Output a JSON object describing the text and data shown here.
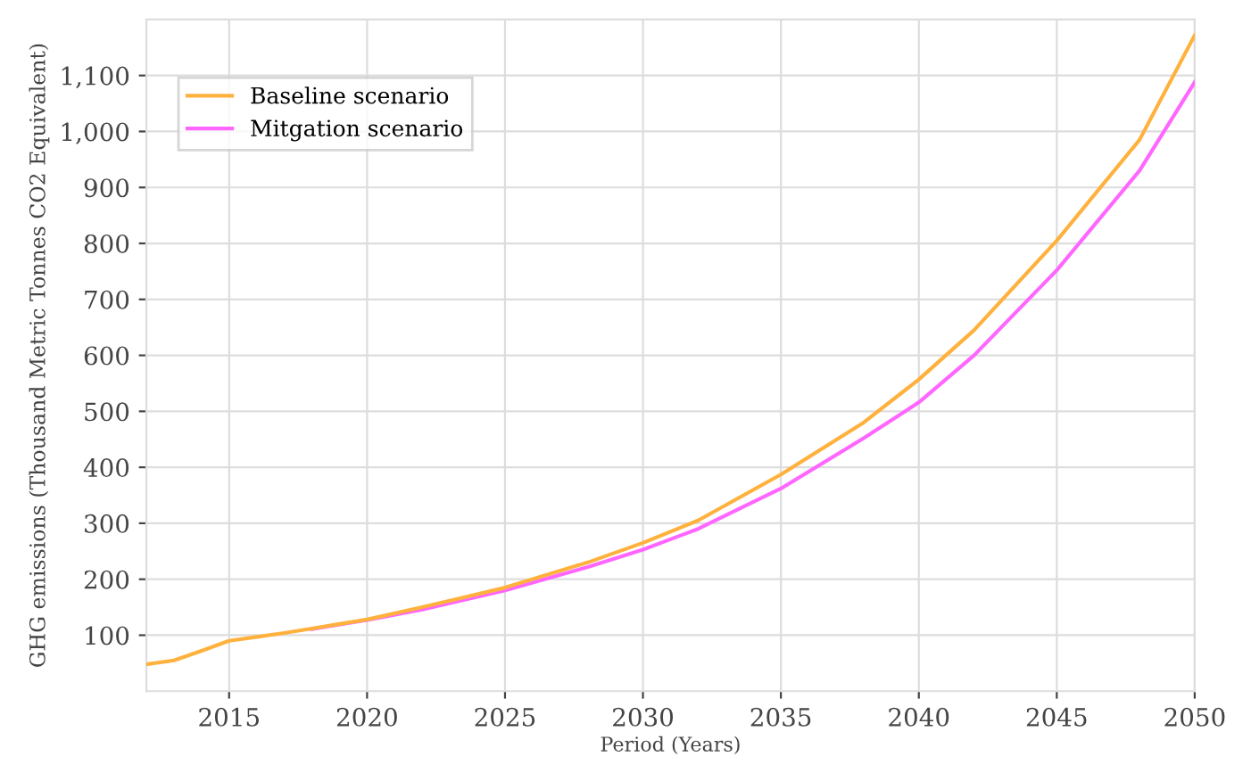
{
  "chart_data": {
    "type": "line",
    "xlabel": "Period (Years)",
    "ylabel": "GHG emissions (Thousand Metric Tonnes CO2 Equivalent)",
    "x": [
      2012,
      2013,
      2014,
      2015,
      2016,
      2017,
      2018,
      2019,
      2020,
      2022,
      2025,
      2028,
      2030,
      2032,
      2035,
      2038,
      2040,
      2042,
      2045,
      2048,
      2050
    ],
    "series": [
      {
        "name": "Baseline scenario",
        "color": "#ffb13d",
        "values": [
          48,
          55,
          72,
          90,
          97,
          104,
          112,
          120,
          128,
          150,
          185,
          230,
          265,
          305,
          387,
          480,
          557,
          645,
          805,
          985,
          1172
        ]
      },
      {
        "name": "Mitgation scenario",
        "color": "#ff66ff",
        "values": [
          null,
          null,
          null,
          null,
          null,
          null,
          111,
          119,
          127,
          146,
          180,
          222,
          253,
          290,
          362,
          452,
          516,
          600,
          752,
          930,
          1088
        ]
      }
    ],
    "xlim": [
      2012,
      2050
    ],
    "xticks": [
      2015,
      2020,
      2025,
      2030,
      2035,
      2040,
      2045,
      2050
    ],
    "ylim": [
      0,
      1200
    ],
    "yticks": [
      100,
      200,
      300,
      400,
      500,
      600,
      700,
      800,
      900,
      {
        "value": 1000,
        "label": "1,000"
      },
      {
        "value": 1100,
        "label": "1,100"
      }
    ],
    "grid": true,
    "legend": "top left"
  }
}
